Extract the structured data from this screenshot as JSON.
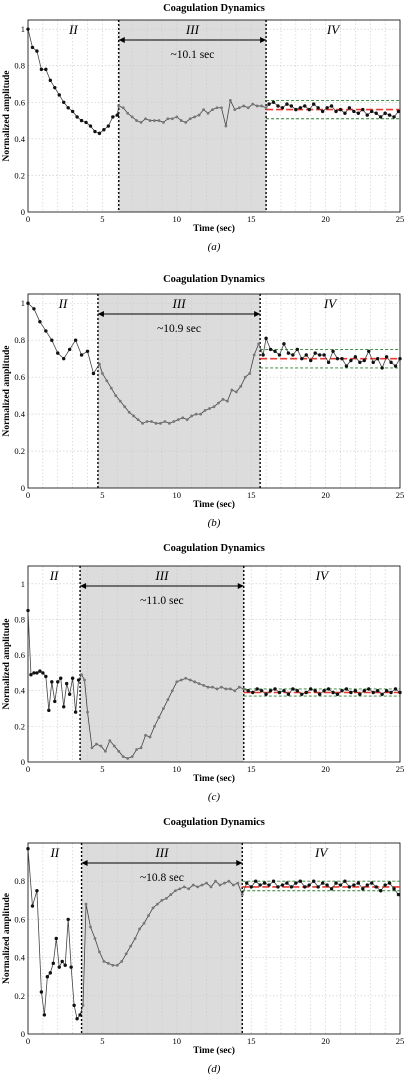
{
  "figure": {
    "panels": [
      {
        "title": "Coagulation Dynamics",
        "xlabel": "Time (sec)",
        "ylabel": "Normalized amplitude",
        "caption": "(a)",
        "xlim": [
          0,
          25
        ],
        "ylim": [
          0,
          1.05
        ],
        "xticks": [
          0,
          5,
          10,
          15,
          20,
          25
        ],
        "yticks": [
          0,
          0.2,
          0.4,
          0.6,
          0.8,
          1
        ],
        "phase_labels": [
          "II",
          "III",
          "IV"
        ],
        "duration_label": "~10.1 sec",
        "shaded_region": [
          6.1,
          16.0
        ],
        "dashed_lines": [
          6.1,
          16.0
        ],
        "mean_value": 0.56,
        "band": [
          0.51,
          0.61
        ]
      },
      {
        "title": "Coagulation Dynamics",
        "xlabel": "Time (sec)",
        "ylabel": "Normalized amplitude",
        "caption": "(b)",
        "xlim": [
          0,
          25
        ],
        "ylim": [
          0,
          1.05
        ],
        "xticks": [
          0,
          5,
          10,
          15,
          20,
          25
        ],
        "yticks": [
          0,
          0.2,
          0.4,
          0.6,
          0.8,
          1
        ],
        "phase_labels": [
          "II",
          "III",
          "IV"
        ],
        "duration_label": "~10.9 sec",
        "shaded_region": [
          4.7,
          15.6
        ],
        "dashed_lines": [
          4.7,
          15.6
        ],
        "mean_value": 0.7,
        "band": [
          0.65,
          0.75
        ]
      },
      {
        "title": "Coagulation Dynamics",
        "xlabel": "Time (sec)",
        "ylabel": "Normalized amplitude",
        "caption": "(c)",
        "xlim": [
          0,
          25
        ],
        "ylim": [
          0,
          1.1
        ],
        "xticks": [
          0,
          5,
          10,
          15,
          20,
          25
        ],
        "yticks": [
          0,
          0.2,
          0.4,
          0.6,
          0.8,
          1
        ],
        "phase_labels": [
          "II",
          "III",
          "IV"
        ],
        "duration_label": "~11.0 sec",
        "shaded_region": [
          3.5,
          14.5
        ],
        "dashed_lines": [
          3.5,
          14.5
        ],
        "mean_value": 0.39,
        "band": [
          0.37,
          0.41
        ]
      },
      {
        "title": "Coagulation Dynamics",
        "xlabel": "Time (sec)",
        "ylabel": "Normalized amplitude",
        "caption": "(d)",
        "xlim": [
          0,
          25
        ],
        "ylim": [
          0,
          1.0
        ],
        "xticks": [
          0,
          5,
          10,
          15,
          20,
          25
        ],
        "yticks": [
          0,
          0.2,
          0.4,
          0.6,
          0.8
        ],
        "phase_labels": [
          "II",
          "III",
          "IV"
        ],
        "duration_label": "~10.8 sec",
        "shaded_region": [
          3.6,
          14.4
        ],
        "dashed_lines": [
          3.6,
          14.4
        ],
        "mean_value": 0.77,
        "band": [
          0.75,
          0.8
        ]
      }
    ]
  },
  "chart_data": [
    {
      "type": "line",
      "title": "Coagulation Dynamics",
      "xlabel": "Time (sec)",
      "ylabel": "Normalized amplitude",
      "xlim": [
        0,
        25
      ],
      "ylim": [
        0,
        1.05
      ],
      "grid": true,
      "x": [
        0.0,
        0.3,
        0.6,
        0.9,
        1.2,
        1.5,
        1.8,
        2.1,
        2.4,
        2.7,
        3.0,
        3.3,
        3.6,
        3.9,
        4.2,
        4.5,
        4.8,
        5.1,
        5.4,
        5.7,
        6.0,
        6.1,
        6.4,
        6.7,
        7.0,
        7.3,
        7.6,
        7.9,
        8.2,
        8.5,
        8.8,
        9.1,
        9.4,
        9.7,
        10.0,
        10.3,
        10.6,
        10.9,
        11.2,
        11.5,
        11.8,
        12.1,
        12.4,
        12.7,
        13.0,
        13.3,
        13.6,
        13.9,
        14.2,
        14.5,
        14.8,
        15.1,
        15.4,
        15.7,
        16.0,
        16.2,
        16.5,
        16.8,
        17.1,
        17.4,
        17.7,
        18.0,
        18.3,
        18.6,
        18.9,
        19.2,
        19.5,
        19.8,
        20.1,
        20.4,
        20.7,
        21.0,
        21.3,
        21.6,
        21.9,
        22.2,
        22.5,
        22.8,
        23.1,
        23.4,
        23.7,
        24.0,
        24.3,
        24.6,
        24.9
      ],
      "y": [
        1.0,
        0.9,
        0.88,
        0.78,
        0.78,
        0.72,
        0.68,
        0.64,
        0.6,
        0.57,
        0.55,
        0.52,
        0.5,
        0.49,
        0.47,
        0.44,
        0.43,
        0.45,
        0.47,
        0.52,
        0.53,
        0.58,
        0.57,
        0.54,
        0.52,
        0.5,
        0.49,
        0.51,
        0.5,
        0.5,
        0.5,
        0.49,
        0.51,
        0.51,
        0.52,
        0.5,
        0.49,
        0.51,
        0.52,
        0.53,
        0.56,
        0.54,
        0.56,
        0.57,
        0.57,
        0.47,
        0.61,
        0.56,
        0.57,
        0.58,
        0.57,
        0.59,
        0.58,
        0.58,
        0.57,
        0.59,
        0.6,
        0.58,
        0.57,
        0.59,
        0.58,
        0.56,
        0.57,
        0.58,
        0.56,
        0.59,
        0.57,
        0.55,
        0.57,
        0.58,
        0.55,
        0.56,
        0.54,
        0.57,
        0.55,
        0.54,
        0.56,
        0.53,
        0.55,
        0.54,
        0.52,
        0.54,
        0.53,
        0.52,
        0.55
      ]
    },
    {
      "type": "line",
      "title": "Coagulation Dynamics",
      "xlabel": "Time (sec)",
      "ylabel": "Normalized amplitude",
      "xlim": [
        0,
        25
      ],
      "ylim": [
        0,
        1.05
      ],
      "grid": true,
      "x": [
        0.0,
        0.4,
        0.8,
        1.2,
        1.6,
        2.0,
        2.4,
        2.8,
        3.2,
        3.6,
        4.0,
        4.4,
        4.8,
        5.0,
        5.3,
        5.6,
        5.9,
        6.2,
        6.5,
        6.8,
        7.1,
        7.4,
        7.7,
        8.0,
        8.3,
        8.6,
        8.9,
        9.2,
        9.5,
        9.8,
        10.1,
        10.4,
        10.7,
        11.0,
        11.3,
        11.6,
        11.9,
        12.2,
        12.5,
        12.8,
        13.1,
        13.4,
        13.7,
        14.0,
        14.3,
        14.6,
        14.9,
        15.2,
        15.5,
        15.8,
        16.0,
        16.3,
        16.6,
        16.9,
        17.2,
        17.5,
        17.8,
        18.1,
        18.4,
        18.7,
        19.0,
        19.3,
        19.6,
        19.9,
        20.2,
        20.5,
        20.8,
        21.1,
        21.4,
        21.7,
        22.0,
        22.3,
        22.6,
        22.9,
        23.2,
        23.5,
        23.8,
        24.1,
        24.4,
        24.7,
        25.0
      ],
      "y": [
        1.0,
        0.97,
        0.9,
        0.85,
        0.8,
        0.73,
        0.7,
        0.75,
        0.8,
        0.72,
        0.74,
        0.62,
        0.67,
        0.62,
        0.58,
        0.54,
        0.5,
        0.47,
        0.44,
        0.41,
        0.39,
        0.37,
        0.35,
        0.36,
        0.36,
        0.35,
        0.35,
        0.36,
        0.35,
        0.36,
        0.37,
        0.38,
        0.37,
        0.39,
        0.4,
        0.4,
        0.42,
        0.43,
        0.44,
        0.46,
        0.48,
        0.47,
        0.53,
        0.52,
        0.55,
        0.6,
        0.62,
        0.72,
        0.78,
        0.72,
        0.81,
        0.75,
        0.74,
        0.72,
        0.78,
        0.73,
        0.72,
        0.75,
        0.7,
        0.72,
        0.69,
        0.73,
        0.72,
        0.72,
        0.68,
        0.74,
        0.7,
        0.7,
        0.66,
        0.69,
        0.71,
        0.68,
        0.69,
        0.74,
        0.68,
        0.7,
        0.65,
        0.71,
        0.68,
        0.66,
        0.7
      ]
    },
    {
      "type": "line",
      "title": "Coagulation Dynamics",
      "xlabel": "Time (sec)",
      "ylabel": "Normalized amplitude",
      "xlim": [
        0,
        25
      ],
      "ylim": [
        0,
        1.1
      ],
      "grid": true,
      "x": [
        0.0,
        0.2,
        0.4,
        0.6,
        0.8,
        1.0,
        1.2,
        1.4,
        1.6,
        1.8,
        2.0,
        2.2,
        2.4,
        2.6,
        2.8,
        3.0,
        3.2,
        3.4,
        3.6,
        3.8,
        4.0,
        4.3,
        4.6,
        4.9,
        5.2,
        5.5,
        5.8,
        6.1,
        6.4,
        6.7,
        7.0,
        7.3,
        7.6,
        7.9,
        8.2,
        8.5,
        8.8,
        9.1,
        9.4,
        9.7,
        10.0,
        10.3,
        10.6,
        10.9,
        11.2,
        11.5,
        11.8,
        12.1,
        12.4,
        12.7,
        13.0,
        13.3,
        13.6,
        13.9,
        14.2,
        14.5,
        14.8,
        15.1,
        15.4,
        15.7,
        16.0,
        16.3,
        16.6,
        16.9,
        17.2,
        17.5,
        17.8,
        18.1,
        18.4,
        18.7,
        19.0,
        19.3,
        19.6,
        19.9,
        20.2,
        20.5,
        20.8,
        21.1,
        21.4,
        21.7,
        22.0,
        22.3,
        22.6,
        22.9,
        23.2,
        23.5,
        23.8,
        24.1,
        24.4,
        24.7,
        25.0
      ],
      "y": [
        0.85,
        0.49,
        0.5,
        0.5,
        0.51,
        0.5,
        0.48,
        0.29,
        0.45,
        0.34,
        0.45,
        0.47,
        0.31,
        0.44,
        0.38,
        0.47,
        0.28,
        0.46,
        0.49,
        0.46,
        0.28,
        0.08,
        0.1,
        0.09,
        0.06,
        0.12,
        0.09,
        0.06,
        0.03,
        0.02,
        0.03,
        0.07,
        0.08,
        0.15,
        0.14,
        0.2,
        0.25,
        0.3,
        0.35,
        0.4,
        0.45,
        0.46,
        0.47,
        0.46,
        0.45,
        0.44,
        0.43,
        0.42,
        0.42,
        0.41,
        0.42,
        0.41,
        0.41,
        0.4,
        0.42,
        0.41,
        0.4,
        0.39,
        0.41,
        0.4,
        0.38,
        0.4,
        0.41,
        0.39,
        0.4,
        0.38,
        0.41,
        0.4,
        0.38,
        0.39,
        0.41,
        0.4,
        0.38,
        0.4,
        0.41,
        0.39,
        0.38,
        0.4,
        0.41,
        0.39,
        0.4,
        0.38,
        0.4,
        0.41,
        0.39,
        0.4,
        0.38,
        0.4,
        0.39,
        0.41,
        0.39
      ]
    },
    {
      "type": "line",
      "title": "Coagulation Dynamics",
      "xlabel": "Time (sec)",
      "ylabel": "Normalized amplitude",
      "xlim": [
        0,
        25
      ],
      "ylim": [
        0,
        1.0
      ],
      "grid": true,
      "x": [
        0.0,
        0.3,
        0.6,
        0.9,
        1.1,
        1.3,
        1.5,
        1.7,
        1.9,
        2.1,
        2.3,
        2.5,
        2.7,
        2.9,
        3.1,
        3.3,
        3.5,
        3.7,
        3.9,
        4.2,
        4.5,
        4.8,
        5.1,
        5.4,
        5.7,
        6.0,
        6.3,
        6.6,
        6.9,
        7.2,
        7.5,
        7.8,
        8.1,
        8.4,
        8.7,
        9.0,
        9.3,
        9.6,
        9.9,
        10.2,
        10.5,
        10.8,
        11.1,
        11.4,
        11.7,
        12.0,
        12.3,
        12.6,
        12.9,
        13.2,
        13.5,
        13.8,
        14.1,
        14.4,
        14.7,
        15.0,
        15.3,
        15.6,
        15.9,
        16.2,
        16.5,
        16.8,
        17.1,
        17.4,
        17.7,
        18.0,
        18.3,
        18.6,
        18.9,
        19.2,
        19.5,
        19.8,
        20.1,
        20.4,
        20.7,
        21.0,
        21.3,
        21.6,
        21.9,
        22.2,
        22.5,
        22.8,
        23.1,
        23.4,
        23.7,
        24.0,
        24.3,
        24.6,
        24.9
      ],
      "y": [
        0.97,
        0.67,
        0.75,
        0.22,
        0.1,
        0.3,
        0.32,
        0.37,
        0.5,
        0.35,
        0.38,
        0.36,
        0.6,
        0.35,
        0.15,
        0.08,
        0.1,
        0.15,
        0.68,
        0.56,
        0.5,
        0.43,
        0.38,
        0.37,
        0.36,
        0.36,
        0.38,
        0.42,
        0.46,
        0.5,
        0.55,
        0.58,
        0.62,
        0.66,
        0.68,
        0.7,
        0.71,
        0.73,
        0.75,
        0.76,
        0.77,
        0.76,
        0.78,
        0.77,
        0.78,
        0.79,
        0.77,
        0.8,
        0.78,
        0.79,
        0.8,
        0.78,
        0.79,
        0.73,
        0.79,
        0.77,
        0.8,
        0.78,
        0.79,
        0.78,
        0.8,
        0.77,
        0.78,
        0.79,
        0.77,
        0.79,
        0.8,
        0.77,
        0.78,
        0.8,
        0.77,
        0.79,
        0.78,
        0.76,
        0.79,
        0.78,
        0.8,
        0.77,
        0.78,
        0.79,
        0.76,
        0.78,
        0.79,
        0.77,
        0.75,
        0.78,
        0.79,
        0.76,
        0.73
      ]
    }
  ]
}
